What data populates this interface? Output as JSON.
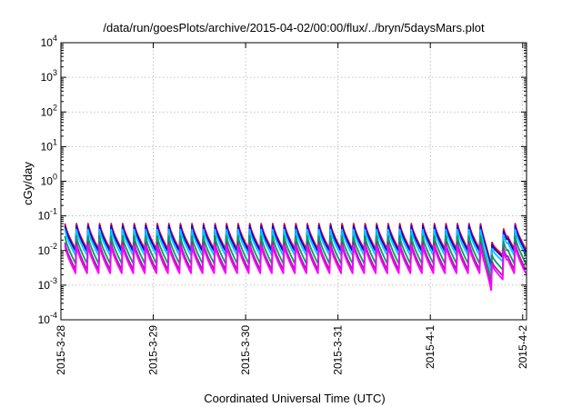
{
  "chart_data": {
    "type": "line",
    "title": "/data/run/goesPlots/archive/2015-04-02/00:00/flux/../bryn/5daysMars.plot",
    "xlabel": "Coordinated Universal Time (UTC)",
    "ylabel": "cGy/day",
    "yscale": "log",
    "ylim": [
      0.0001,
      10000
    ],
    "xlim": [
      "2015-03-28 00:00",
      "2015-04-02 01:00"
    ],
    "grid": true,
    "x_ticks": [
      "2015-3-28",
      "2015-3-29",
      "2015-3-30",
      "2015-3-31",
      "2015-4-1",
      "2015-4-2"
    ],
    "y_ticks": [
      {
        "value": 0.0001,
        "mantissa": "10",
        "exponent": "-4"
      },
      {
        "value": 0.001,
        "mantissa": "10",
        "exponent": "-3"
      },
      {
        "value": 0.01,
        "mantissa": "10",
        "exponent": "-2"
      },
      {
        "value": 0.1,
        "mantissa": "10",
        "exponent": "-1"
      },
      {
        "value": 1,
        "mantissa": "10",
        "exponent": "0"
      },
      {
        "value": 10,
        "mantissa": "10",
        "exponent": "1"
      },
      {
        "value": 100,
        "mantissa": "10",
        "exponent": "2"
      },
      {
        "value": 1000,
        "mantissa": "10",
        "exponent": "3"
      },
      {
        "value": 10000,
        "mantissa": "10",
        "exponent": "4"
      }
    ],
    "cycle_hours": 3,
    "series": [
      {
        "color": "#ff0000",
        "peak": 0.06,
        "trough": 0.011
      },
      {
        "color": "#0000ff",
        "peak": 0.052,
        "trough": 0.0095
      },
      {
        "color": "#00c8ff",
        "peak": 0.04,
        "trough": 0.0072
      },
      {
        "color": "#00a060",
        "peak": 0.026,
        "trough": 0.0042
      },
      {
        "color": "#a020a0",
        "peak": 0.017,
        "trough": 0.0028
      },
      {
        "color": "#ff00ff",
        "peak": 0.014,
        "trough": 0.0022
      }
    ],
    "dip": {
      "start": "2015-04-01 13:00",
      "min": "2015-04-01 16:00",
      "end": "2015-04-01 20:00"
    }
  }
}
